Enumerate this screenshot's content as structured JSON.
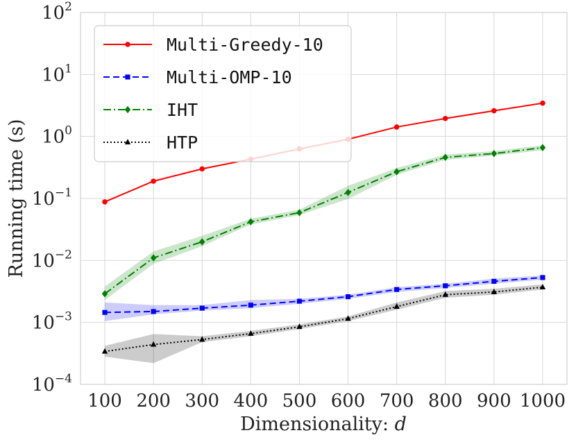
{
  "chart_data": {
    "type": "line",
    "xlabel": "Dimensionality: ",
    "xlabel_var": "d",
    "ylabel": "Running time (s)",
    "yscale": "log",
    "ylim": [
      0.0001,
      100
    ],
    "xlim": [
      50,
      1050
    ],
    "x": [
      100,
      200,
      300,
      400,
      500,
      600,
      700,
      800,
      900,
      1000
    ],
    "x_tick_labels": [
      "100",
      "200",
      "300",
      "400",
      "500",
      "600",
      "700",
      "800",
      "900",
      "1000"
    ],
    "y_ticks": [
      {
        "value": 0.0001,
        "base": "10",
        "exp": "−4"
      },
      {
        "value": 0.001,
        "base": "10",
        "exp": "−3"
      },
      {
        "value": 0.01,
        "base": "10",
        "exp": "−2"
      },
      {
        "value": 0.1,
        "base": "10",
        "exp": "−1"
      },
      {
        "value": 1,
        "base": "10",
        "exp": "0"
      },
      {
        "value": 10,
        "base": "10",
        "exp": "1"
      },
      {
        "value": 100,
        "base": "10",
        "exp": "2"
      }
    ],
    "grid": true,
    "legend_position": "top-left",
    "series": [
      {
        "name": "Multi-Greedy-10",
        "color": "#ff0000",
        "dash": "",
        "marker": "circle",
        "values": [
          0.088,
          0.19,
          0.3,
          0.43,
          0.63,
          0.9,
          1.42,
          1.95,
          2.6,
          3.45
        ]
      },
      {
        "name": "Multi-OMP-10",
        "color": "#0000ff",
        "dash": "9,5",
        "marker": "square",
        "values": [
          0.00145,
          0.0015,
          0.0017,
          0.0019,
          0.0022,
          0.0026,
          0.0034,
          0.0039,
          0.0046,
          0.0053
        ],
        "lower": [
          0.00105,
          0.00135,
          0.00155,
          0.0017,
          0.002,
          0.0024,
          0.0031,
          0.0036,
          0.0042,
          0.0049
        ],
        "upper": [
          0.0021,
          0.0019,
          0.0019,
          0.0023,
          0.0024,
          0.0028,
          0.0037,
          0.0042,
          0.0051,
          0.0057
        ]
      },
      {
        "name": "IHT",
        "color": "#008000",
        "dash": "11,4,2,4",
        "marker": "diamond",
        "values": [
          0.0029,
          0.011,
          0.02,
          0.042,
          0.059,
          0.125,
          0.27,
          0.46,
          0.53,
          0.66
        ],
        "lower": [
          0.0023,
          0.0088,
          0.017,
          0.038,
          0.054,
          0.098,
          0.24,
          0.42,
          0.49,
          0.6
        ],
        "upper": [
          0.0038,
          0.014,
          0.025,
          0.047,
          0.066,
          0.16,
          0.31,
          0.51,
          0.58,
          0.72
        ]
      },
      {
        "name": "HTP",
        "color": "#000000",
        "dash": "2,3",
        "marker": "triangle",
        "values": [
          0.00034,
          0.00044,
          0.00053,
          0.00066,
          0.00085,
          0.00115,
          0.0018,
          0.0028,
          0.0031,
          0.0037
        ],
        "lower": [
          0.00028,
          0.00022,
          0.00048,
          0.0006,
          0.00078,
          0.00105,
          0.0016,
          0.0025,
          0.0028,
          0.0034
        ],
        "upper": [
          0.00042,
          0.00065,
          0.0006,
          0.00073,
          0.00093,
          0.00125,
          0.0021,
          0.0032,
          0.0035,
          0.0041
        ]
      }
    ]
  }
}
